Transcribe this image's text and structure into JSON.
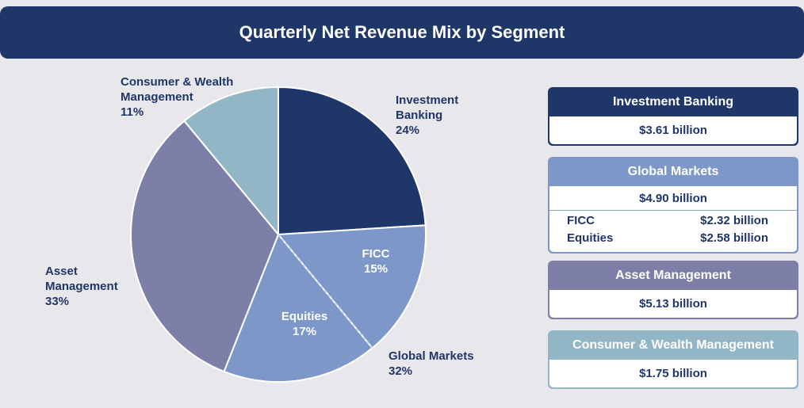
{
  "header": {
    "title": "Quarterly Net Revenue Mix by Segment"
  },
  "colors": {
    "header_bg": "#1f3668",
    "investment_banking": "#1f3668",
    "global_markets": "#7d98c8",
    "asset_management": "#7e7fa8",
    "consumer_wealth": "#93b6c6"
  },
  "chart_data": {
    "type": "pie",
    "title": "Quarterly Net Revenue Mix by Segment",
    "slices": [
      {
        "name": "Investment Banking",
        "label_line1": "Investment",
        "label_line2": "Banking",
        "pct_label": "24%",
        "value": 24,
        "color": "#1f3668"
      },
      {
        "name": "FICC",
        "label_line1": "FICC",
        "pct_label": "15%",
        "value": 15,
        "color": "#7d98c8",
        "group": "Global Markets"
      },
      {
        "name": "Equities",
        "label_line1": "Equities",
        "pct_label": "17%",
        "value": 17,
        "color": "#7d98c8",
        "group": "Global Markets"
      },
      {
        "name": "Asset Management",
        "label_line1": "Asset",
        "label_line2": "Management",
        "pct_label": "33%",
        "value": 33,
        "color": "#7e7fa8"
      },
      {
        "name": "Consumer & Wealth Management",
        "label_line1": "Consumer & Wealth",
        "label_line2": "Management",
        "pct_label": "11%",
        "value": 11,
        "color": "#93b6c6"
      }
    ],
    "group_label": {
      "name": "Global Markets",
      "pct_label": "32%"
    }
  },
  "cards": [
    {
      "title": "Investment Banking",
      "total": "$3.61 billion",
      "color": "#1f3668"
    },
    {
      "title": "Global Markets",
      "total": "$4.90 billion",
      "color": "#7d98c8",
      "sub": [
        {
          "name": "FICC",
          "value": "$2.32 billion"
        },
        {
          "name": "Equities",
          "value": "$2.58 billion"
        }
      ]
    },
    {
      "title": "Asset Management",
      "total": "$5.13 billion",
      "color": "#7e7fa8"
    },
    {
      "title": "Consumer & Wealth Management",
      "total": "$1.75 billion",
      "color": "#93b6c6"
    }
  ]
}
